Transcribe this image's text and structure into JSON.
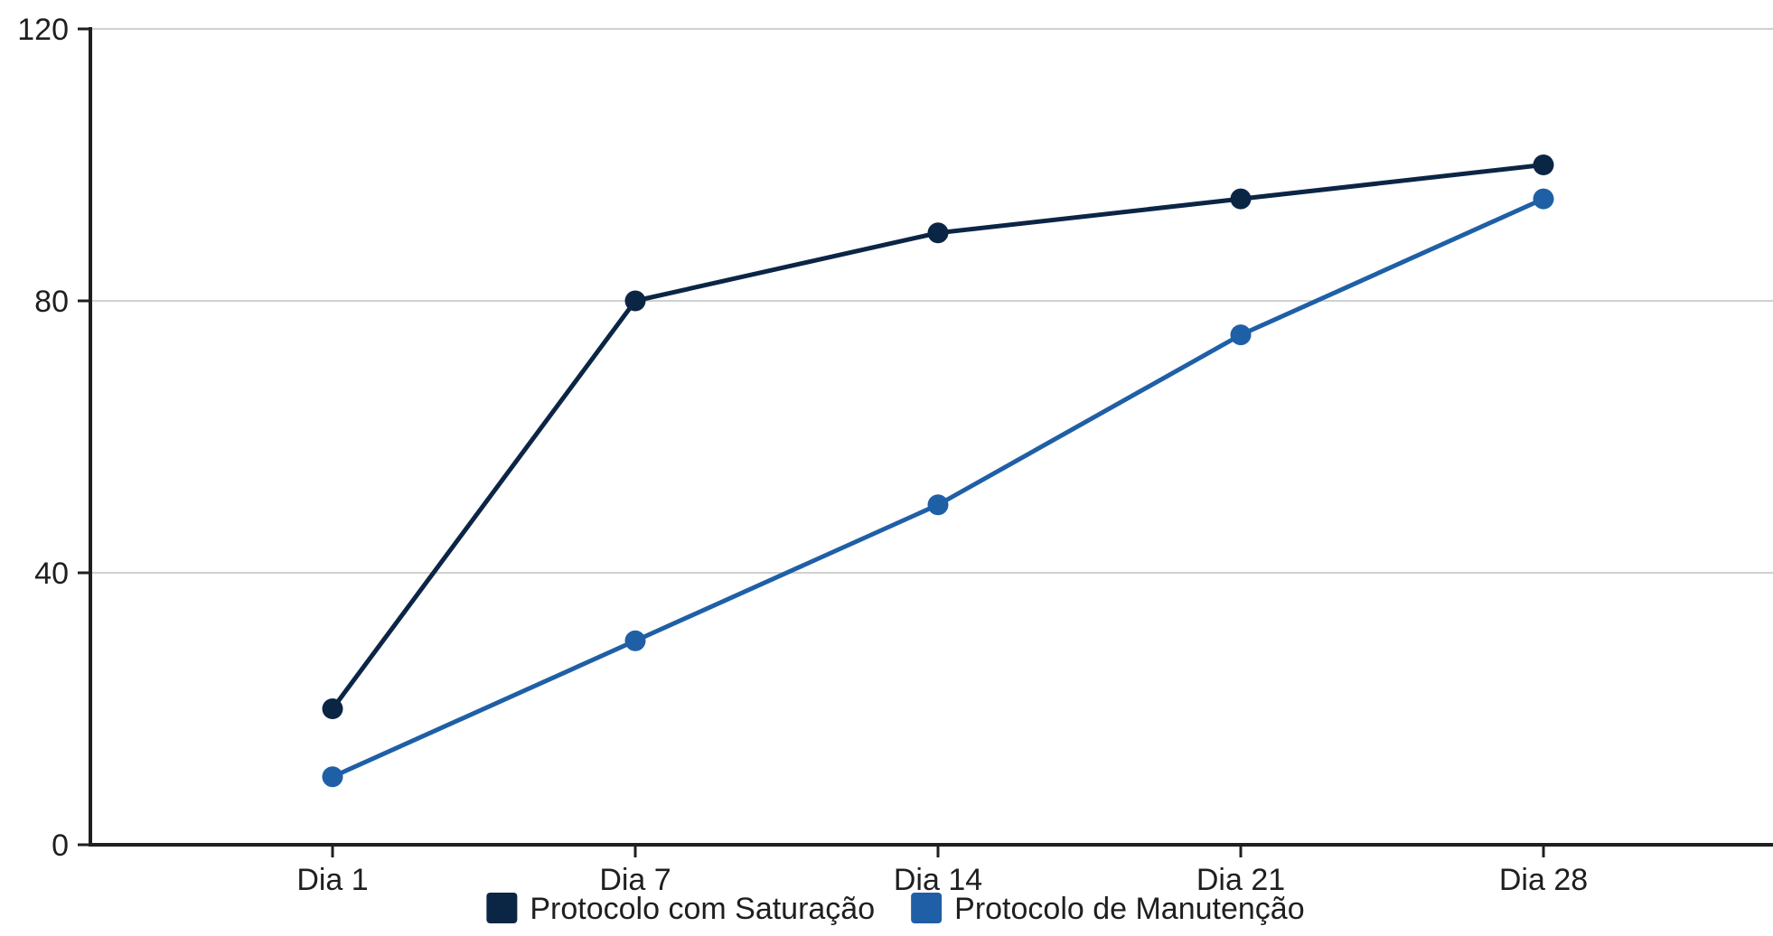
{
  "chart_data": {
    "type": "line",
    "title": "",
    "xlabel": "",
    "ylabel": "",
    "categories": [
      "Dia 1",
      "Dia 7",
      "Dia 14",
      "Dia 21",
      "Dia 28"
    ],
    "ylim": [
      0,
      120
    ],
    "yticks": [
      "0",
      "40",
      "80",
      "120"
    ],
    "grid": true,
    "legend_position": "bottom-center",
    "series": [
      {
        "name": "Protocolo com Saturação",
        "color": "#0b2545",
        "values": [
          20,
          80,
          90,
          95,
          100
        ]
      },
      {
        "name": "Protocolo de Manutenção",
        "color": "#1f5fa6",
        "values": [
          10,
          30,
          50,
          75,
          95
        ]
      }
    ]
  }
}
